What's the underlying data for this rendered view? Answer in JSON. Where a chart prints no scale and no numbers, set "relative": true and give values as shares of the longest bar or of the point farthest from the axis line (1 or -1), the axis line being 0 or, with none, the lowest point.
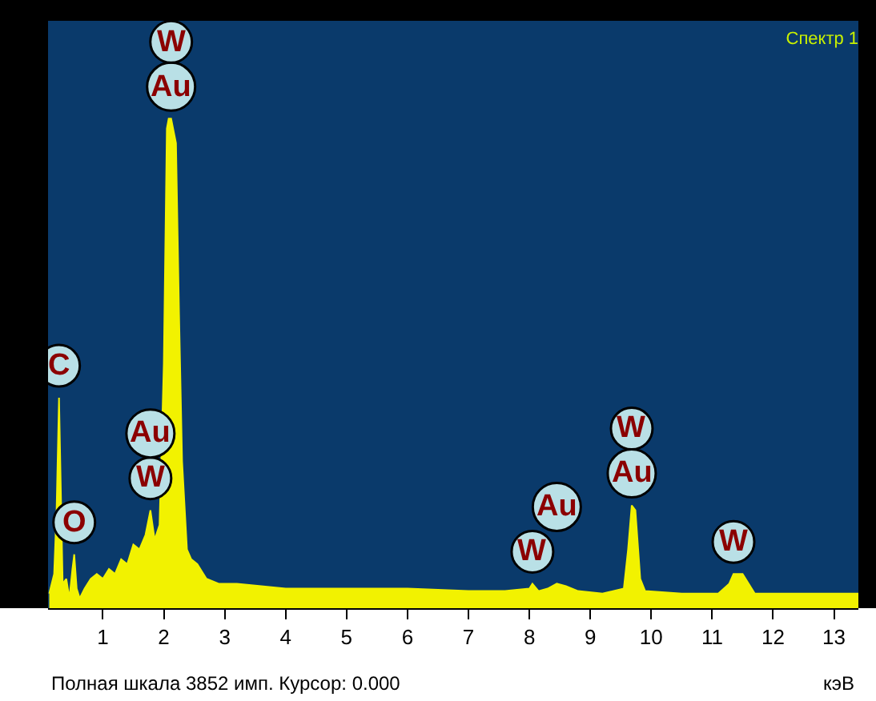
{
  "chart_data": {
    "type": "area",
    "title": "Спектр 1",
    "xlabel": "кэВ",
    "relative": true,
    "color": "#f2f200",
    "x": [
      0.12,
      0.2,
      0.24,
      0.28,
      0.34,
      0.4,
      0.45,
      0.5,
      0.53,
      0.57,
      0.62,
      0.7,
      0.8,
      0.9,
      1.0,
      1.1,
      1.2,
      1.3,
      1.4,
      1.5,
      1.6,
      1.7,
      1.78,
      1.85,
      1.93,
      2.0,
      2.05,
      2.08,
      2.12,
      2.2,
      2.25,
      2.3,
      2.38,
      2.45,
      2.55,
      2.7,
      2.9,
      3.2,
      3.6,
      4.0,
      5.0,
      6.0,
      7.0,
      7.6,
      8.0,
      8.05,
      8.15,
      8.3,
      8.45,
      8.6,
      8.8,
      9.2,
      9.55,
      9.62,
      9.68,
      9.74,
      9.82,
      9.9,
      10.5,
      11.1,
      11.28,
      11.35,
      11.5,
      11.6,
      11.7,
      12.2,
      13.0,
      13.4
    ],
    "values": [
      0.03,
      0.07,
      0.2,
      0.43,
      0.05,
      0.06,
      0.02,
      0.08,
      0.11,
      0.04,
      0.02,
      0.04,
      0.06,
      0.07,
      0.06,
      0.08,
      0.07,
      0.1,
      0.09,
      0.13,
      0.12,
      0.15,
      0.2,
      0.14,
      0.17,
      0.5,
      0.98,
      1.0,
      1.0,
      0.95,
      0.6,
      0.3,
      0.12,
      0.1,
      0.09,
      0.06,
      0.05,
      0.05,
      0.045,
      0.04,
      0.04,
      0.04,
      0.035,
      0.035,
      0.04,
      0.05,
      0.035,
      0.04,
      0.05,
      0.045,
      0.035,
      0.03,
      0.04,
      0.12,
      0.21,
      0.2,
      0.06,
      0.035,
      0.03,
      0.03,
      0.05,
      0.07,
      0.07,
      0.05,
      0.03,
      0.03,
      0.03,
      0.03
    ],
    "xlim": [
      0.1,
      13.4
    ],
    "xticks": [
      1,
      2,
      3,
      4,
      5,
      6,
      7,
      8,
      9,
      10,
      11,
      12,
      13
    ],
    "annotations": [
      {
        "text": "Au",
        "x": 2.12,
        "y": 1.0
      },
      {
        "text": "W",
        "x": 2.12,
        "y": 1.0
      },
      {
        "text": "C",
        "x": 0.28,
        "y": 0.43
      },
      {
        "text": "O",
        "x": 0.53,
        "y": 0.11
      },
      {
        "text": "W",
        "x": 1.78,
        "y": 0.2
      },
      {
        "text": "Au",
        "x": 1.78,
        "y": 0.2
      },
      {
        "text": "W",
        "x": 8.05,
        "y": 0.05
      },
      {
        "text": "Au",
        "x": 8.45,
        "y": 0.05
      },
      {
        "text": "Au",
        "x": 9.68,
        "y": 0.21
      },
      {
        "text": "W",
        "x": 9.68,
        "y": 0.21
      },
      {
        "text": "W",
        "x": 11.35,
        "y": 0.07
      },
      "Полная шкала 3852 имп. Курсор: 0.000"
    ]
  }
}
